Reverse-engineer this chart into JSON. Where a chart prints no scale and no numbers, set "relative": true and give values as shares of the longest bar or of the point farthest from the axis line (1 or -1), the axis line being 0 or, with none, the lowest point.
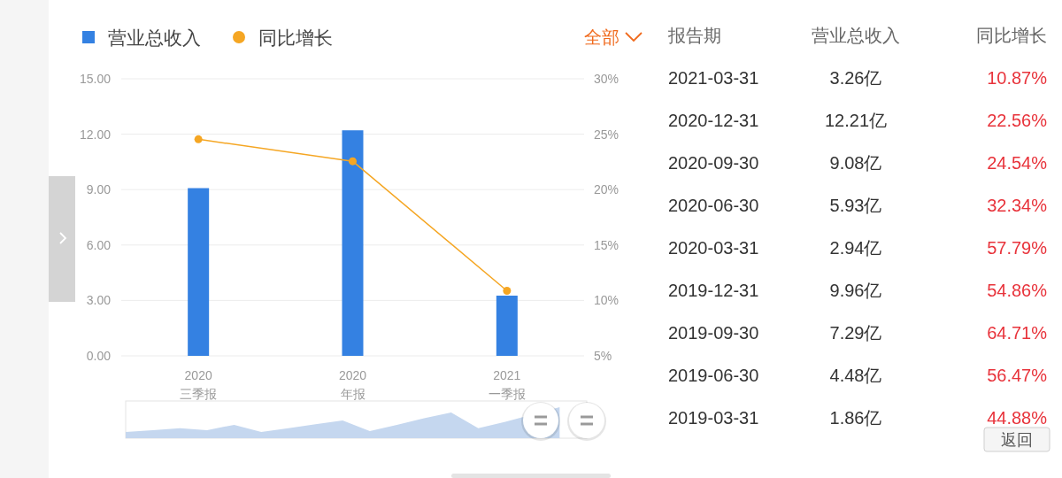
{
  "chart_data": [
    {
      "type": "bar",
      "categories": [
        "2020\n三季报",
        "2020\n年报",
        "2021\n一季报"
      ],
      "series": [
        {
          "name": "营业总收入",
          "type": "bar",
          "color": "#3481e2",
          "values": [
            9.08,
            12.21,
            3.26
          ]
        },
        {
          "name": "同比增长",
          "type": "line",
          "axis": "y2",
          "color": "#f5a623",
          "values": [
            24.54,
            22.56,
            10.87
          ]
        }
      ],
      "ylim": [
        0,
        15
      ],
      "yticks": [
        {
          "value": 0,
          "label": "0.00"
        },
        {
          "value": 3,
          "label": "3.00"
        },
        {
          "value": 6,
          "label": "6.00"
        },
        {
          "value": 9,
          "label": "9.00"
        },
        {
          "value": 12,
          "label": "12.00"
        },
        {
          "value": 15,
          "label": "15.00"
        }
      ],
      "y2lim": [
        5,
        30
      ],
      "y2ticks": [
        {
          "value": 5,
          "label": "5%"
        },
        {
          "value": 10,
          "label": "10%"
        },
        {
          "value": 15,
          "label": "15%"
        },
        {
          "value": 20,
          "label": "20%"
        },
        {
          "value": 25,
          "label": "25%"
        },
        {
          "value": 30,
          "label": "30%"
        }
      ],
      "grid": "y",
      "legend": "top left",
      "marker": "circle",
      "line_style": "solid",
      "annotations": [
        "全部"
      ]
    },
    {
      "type": "other",
      "xlabel": "报告期",
      "categories": [
        "2021-03-31",
        "2020-12-31",
        "2020-09-30",
        "2020-06-30",
        "2020-03-31",
        "2019-12-31",
        "2019-09-30",
        "2019-06-30",
        "2019-03-31"
      ],
      "series": [
        {
          "name": "营业总收入",
          "values": [
            3.26,
            12.21,
            9.08,
            5.93,
            2.94,
            9.96,
            7.29,
            4.48,
            1.86
          ],
          "value_labels": [
            "3.26亿",
            "12.21亿",
            "9.08亿",
            "5.93亿",
            "2.94亿",
            "9.96亿",
            "7.29亿",
            "4.48亿",
            "1.86亿"
          ]
        },
        {
          "name": "同比增长",
          "values": [
            10.87,
            22.56,
            24.54,
            32.34,
            57.79,
            54.86,
            64.71,
            56.47,
            44.88
          ],
          "value_labels": [
            "10.87%",
            "22.56%",
            "24.54%",
            "32.34%",
            "57.79%",
            "54.86%",
            "64.71%",
            "56.47%",
            "44.88%"
          ]
        }
      ],
      "annotations": [
        "返回"
      ]
    },
    {
      "type": "area",
      "relative": true,
      "categories": [
        null,
        null,
        null,
        null,
        null,
        null,
        null,
        null,
        null,
        null,
        null,
        null,
        null,
        null,
        null,
        null,
        null,
        null
      ],
      "values": [
        0.2,
        0.26,
        0.32,
        0.26,
        0.43,
        0.2,
        0.32,
        0.45,
        0.57,
        0.23,
        0.43,
        0.64,
        0.83,
        0.32,
        0.53,
        null,
        1,
        null
      ],
      "color": "#c5d7ef"
    }
  ]
}
